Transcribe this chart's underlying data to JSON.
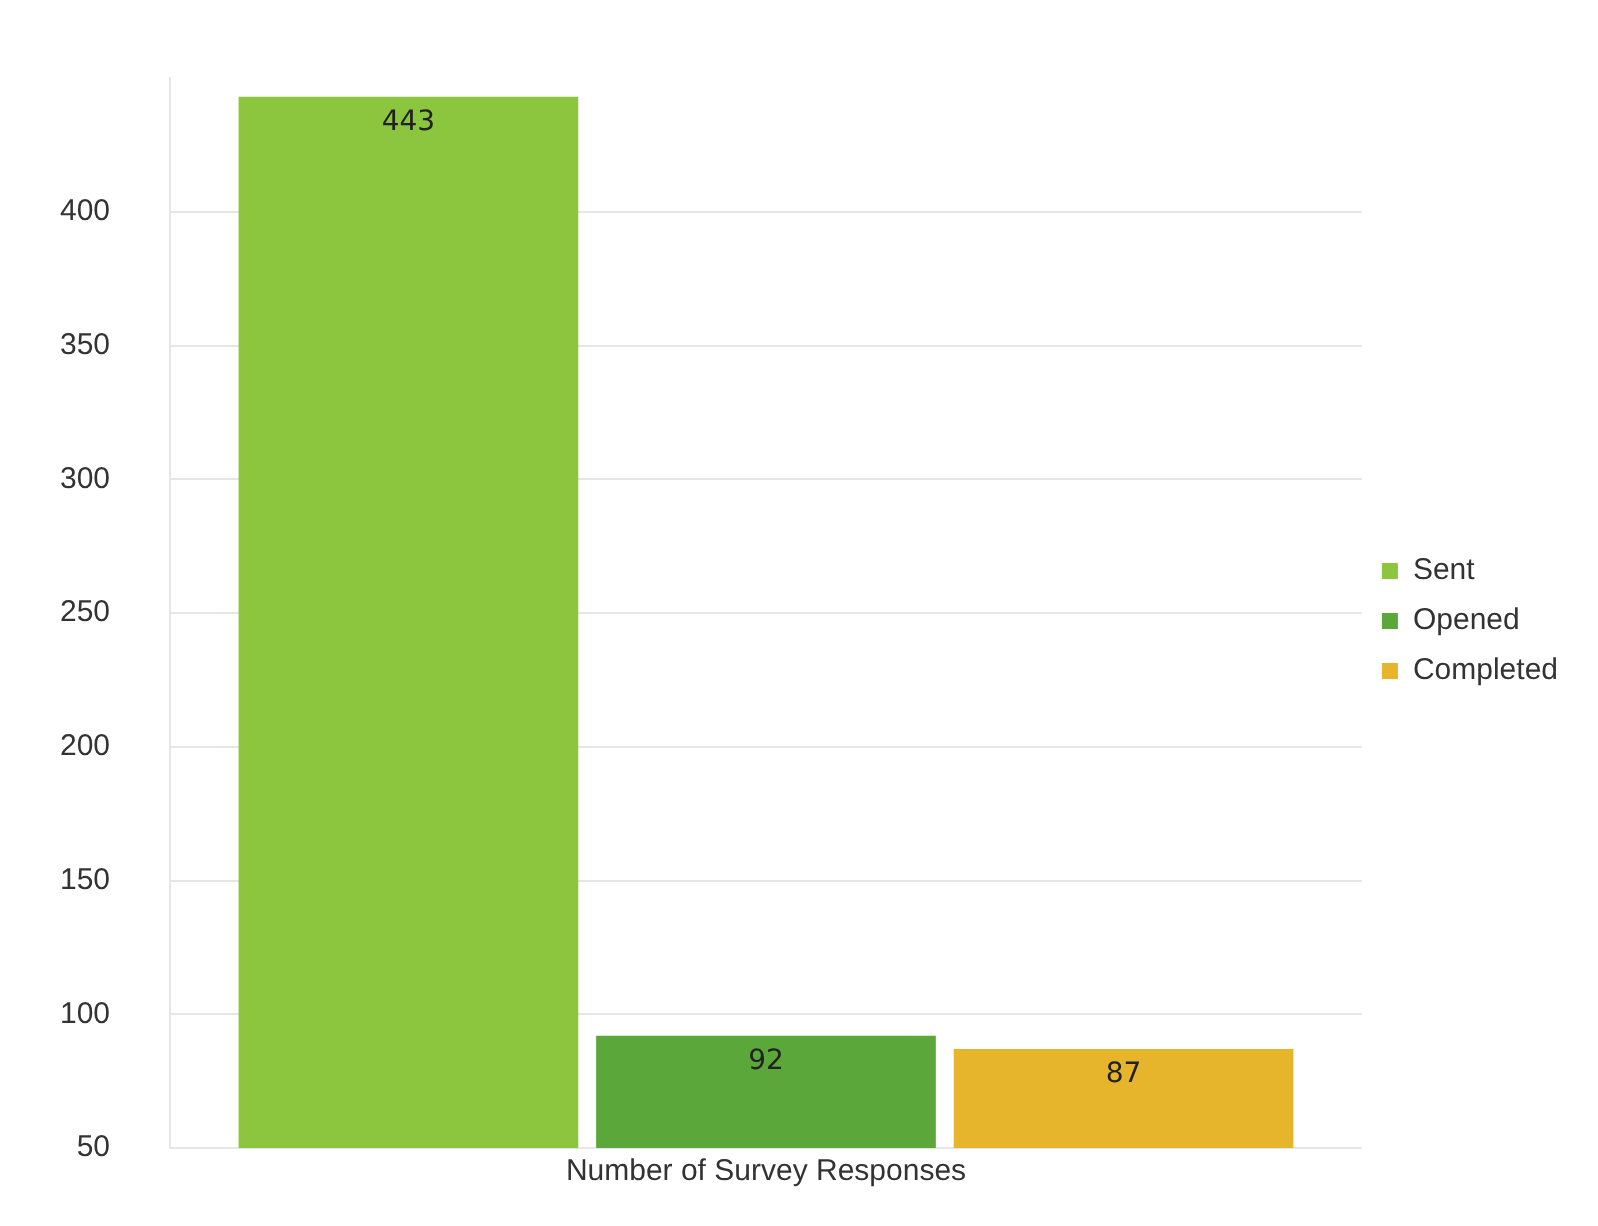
{
  "chart_data": {
    "type": "bar",
    "categories": [
      "Number of Survey Responses"
    ],
    "series": [
      {
        "name": "Sent",
        "color": "#8cc63e",
        "values": [
          443
        ]
      },
      {
        "name": "Opened",
        "color": "#5ba73a",
        "values": [
          92
        ]
      },
      {
        "name": "Completed",
        "color": "#e6b52c",
        "values": [
          87
        ]
      }
    ],
    "ylim": [
      50,
      450
    ],
    "yticks": [
      50,
      100,
      150,
      200,
      250,
      300,
      350,
      400
    ],
    "grid": "y",
    "legend": "right",
    "data_labels": true
  }
}
